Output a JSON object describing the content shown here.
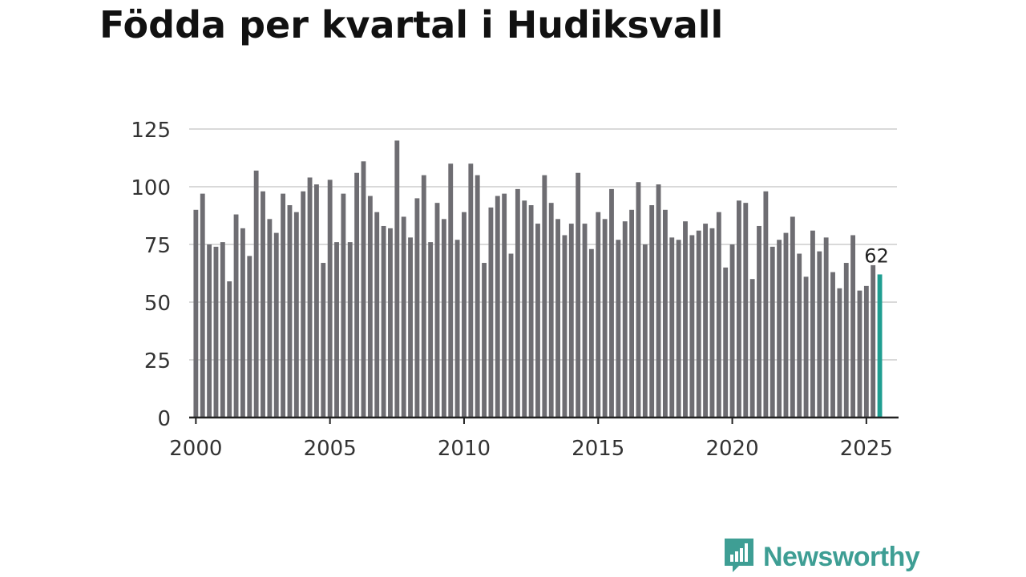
{
  "title": "Födda per kvartal i Hudiksvall",
  "brand": {
    "name": "Newsworthy",
    "color": "#3e9e94",
    "icon": "bar-chart-speech-bubble-icon"
  },
  "colors": {
    "bar": "#6e6d72",
    "highlight": "#1f9e91",
    "grid": "#d9d9d9",
    "axis": "#222222"
  },
  "chart_data": {
    "type": "bar",
    "title": "Födda per kvartal i Hudiksvall",
    "xlabel": "",
    "ylabel": "",
    "ylim": [
      0,
      125
    ],
    "yticks": [
      0,
      25,
      50,
      75,
      100,
      125
    ],
    "xticks": [
      "2000",
      "2005",
      "2010",
      "2015",
      "2020",
      "2025"
    ],
    "xlim": [
      1999.75,
      2026.2
    ],
    "grid": true,
    "first_quarter": "2000 Q1",
    "highlight_label": "62",
    "values": [
      90,
      97,
      75,
      74,
      76,
      59,
      88,
      82,
      70,
      107,
      98,
      86,
      80,
      97,
      92,
      89,
      98,
      104,
      101,
      67,
      103,
      76,
      97,
      76,
      106,
      111,
      96,
      89,
      83,
      82,
      120,
      87,
      78,
      95,
      105,
      76,
      93,
      86,
      110,
      77,
      89,
      110,
      105,
      67,
      91,
      96,
      97,
      71,
      99,
      94,
      92,
      84,
      105,
      93,
      86,
      79,
      84,
      106,
      84,
      73,
      89,
      86,
      99,
      77,
      85,
      90,
      102,
      75,
      92,
      101,
      90,
      78,
      77,
      85,
      79,
      81,
      84,
      82,
      89,
      65,
      75,
      94,
      93,
      60,
      83,
      98,
      74,
      77,
      80,
      87,
      71,
      61,
      81,
      72,
      78,
      63,
      56,
      67,
      79,
      55,
      57,
      66,
      62
    ]
  }
}
